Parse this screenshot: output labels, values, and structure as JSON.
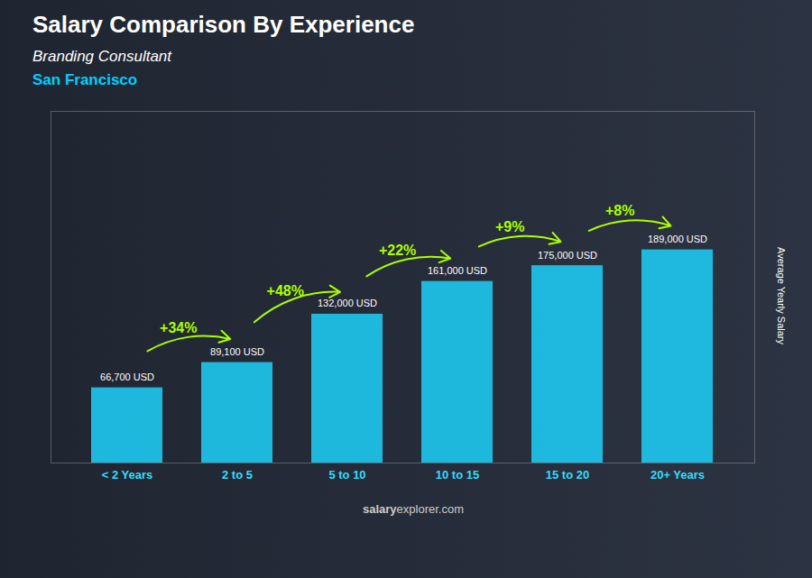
{
  "chart_data": {
    "type": "bar",
    "title": "Salary Comparison By Experience",
    "subtitle": "Branding Consultant",
    "city": {
      "text": "San Francisco",
      "color": "#00cfff"
    },
    "ylabel": "Average Yearly Salary",
    "caption": [
      "salary",
      "explorer.com"
    ],
    "categories": [
      "< 2 Years",
      "2 to 5",
      "5 to 10",
      "10 to 15",
      "15 to 20",
      "20+ Years"
    ],
    "values": [
      66700,
      89100,
      132000,
      161000,
      175000,
      189000
    ],
    "value_labels": [
      "66,700 USD",
      "89,100 USD",
      "132,000 USD",
      "161,000 USD",
      "175,000 USD",
      "189,000 USD"
    ],
    "data_labels": true,
    "arrow_labels": {
      "labels": [
        "+34%",
        "+48%",
        "+22%",
        "+9%",
        "+8%"
      ],
      "color": "#aaff00"
    },
    "color": "#1ec8f0",
    "ylim": [
      0,
      311850
    ],
    "tick_labels": "x",
    "grid": false
  }
}
